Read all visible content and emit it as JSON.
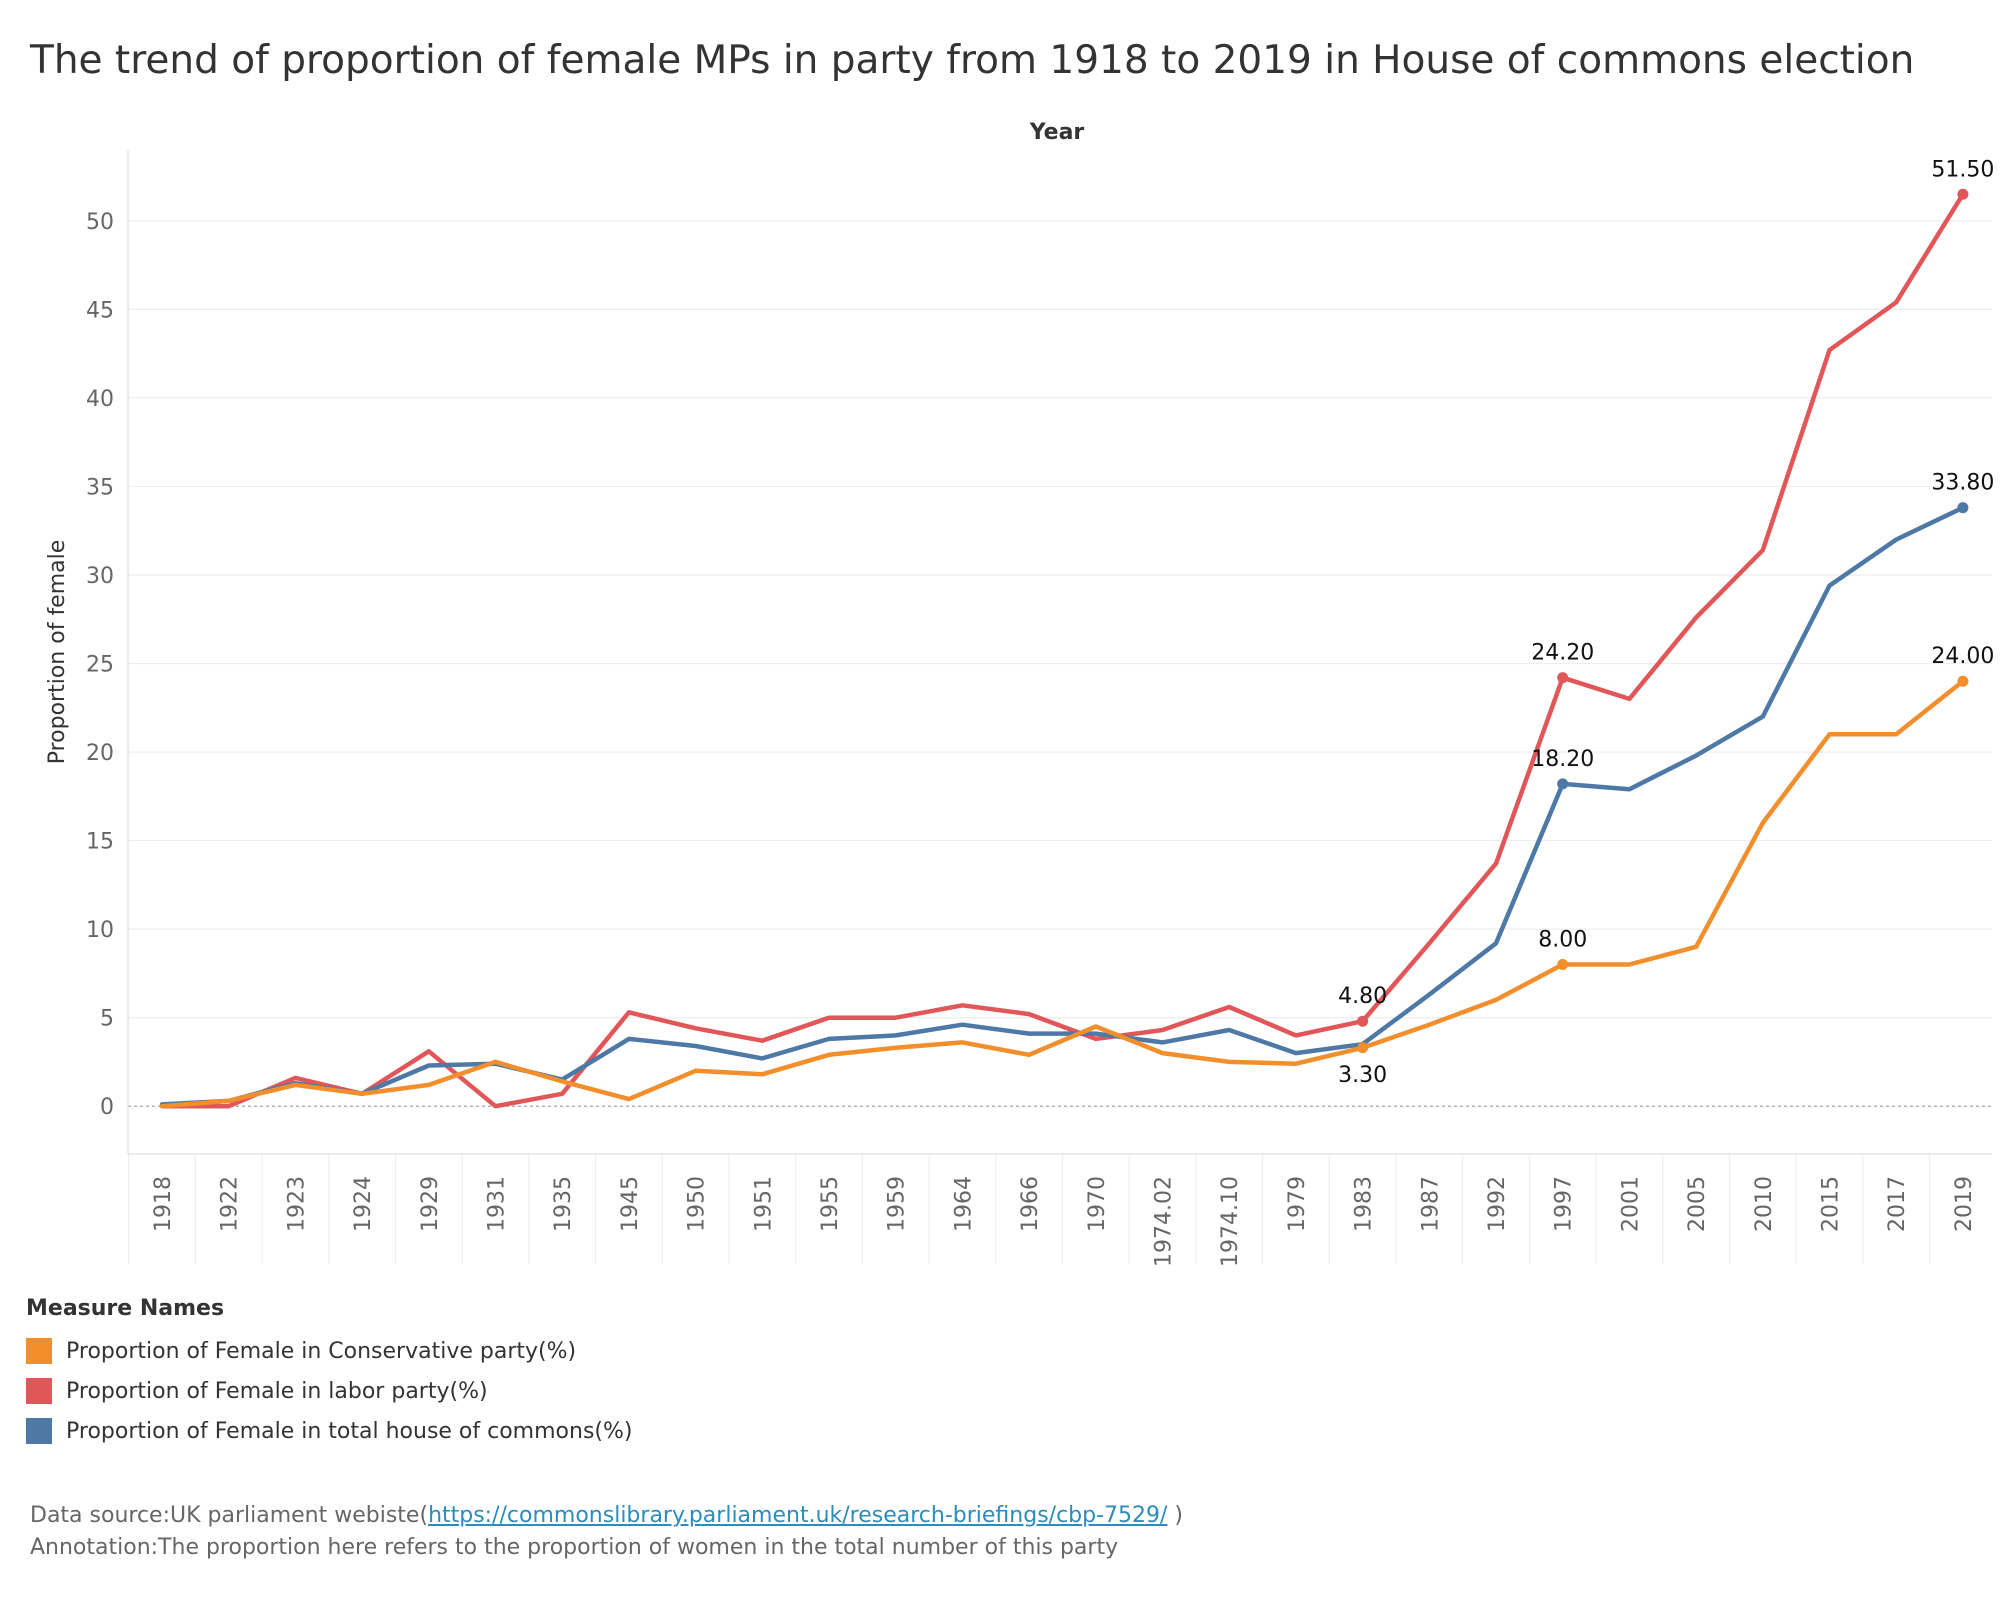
{
  "title": "The trend of proportion of female MPs in party from 1918 to 2019 in House of commons election",
  "legend": {
    "title": "Measure Names",
    "items": [
      {
        "label": "Proportion of Female in Conservative party(%)",
        "color": "#f28e2b"
      },
      {
        "label": "Proportion of Female in labor party(%)",
        "color": "#e15759"
      },
      {
        "label": "Proportion of Female in total house of commons(%)",
        "color": "#4e79a7"
      }
    ]
  },
  "footer": {
    "source_prefix": "Data source:UK parliament webiste(",
    "source_link": "https://commonslibrary.parliament.uk/research-briefings/cbp-7529/",
    "source_suffix": " )",
    "annotation": "Annotation:The proportion here refers to the proportion of women in the total number of this party"
  },
  "chart_data": {
    "type": "line",
    "title": "The trend of proportion of female MPs in party from 1918 to 2019 in House of commons election",
    "xlabel": "Year",
    "ylabel": "Proportion of female",
    "ylim": [
      -2.7,
      54
    ],
    "yticks": [
      0,
      5,
      10,
      15,
      20,
      25,
      30,
      35,
      40,
      45,
      50
    ],
    "grid": true,
    "legend_position": "bottom-left",
    "categories": [
      "1918",
      "1922",
      "1923",
      "1924",
      "1929",
      "1931",
      "1935",
      "1945",
      "1950",
      "1951",
      "1955",
      "1959",
      "1964",
      "1966",
      "1970",
      "1974.02",
      "1974.10",
      "1979",
      "1983",
      "1987",
      "1992",
      "1997",
      "2001",
      "2005",
      "2010",
      "2015",
      "2017",
      "2019"
    ],
    "series": [
      {
        "name": "Proportion of Female in labor party(%)",
        "color": "#e15759",
        "values": [
          0,
          0,
          1.6,
          0.7,
          3.1,
          0,
          0.7,
          5.3,
          4.4,
          3.7,
          5.0,
          5.0,
          5.7,
          5.2,
          3.8,
          4.3,
          5.6,
          4.0,
          4.8,
          9.2,
          13.7,
          24.2,
          23.0,
          27.6,
          31.4,
          42.7,
          45.4,
          51.5
        ],
        "labels": [
          {
            "index": 18,
            "text": "4.80"
          },
          {
            "index": 21,
            "text": "24.20"
          },
          {
            "index": 27,
            "text": "51.50"
          }
        ]
      },
      {
        "name": "Proportion of Female in total house of commons(%)",
        "color": "#4e79a7",
        "values": [
          0.1,
          0.3,
          1.3,
          0.7,
          2.3,
          2.4,
          1.5,
          3.8,
          3.4,
          2.7,
          3.8,
          4.0,
          4.6,
          4.1,
          4.1,
          3.6,
          4.3,
          3.0,
          3.5,
          6.3,
          9.2,
          18.2,
          17.9,
          19.8,
          22.0,
          29.4,
          32.0,
          33.8
        ],
        "labels": [
          {
            "index": 21,
            "text": "18.20"
          },
          {
            "index": 27,
            "text": "33.80"
          }
        ]
      },
      {
        "name": "Proportion of Female in Conservative party(%)",
        "color": "#f28e2b",
        "values": [
          0,
          0.3,
          1.2,
          0.7,
          1.2,
          2.5,
          1.4,
          0.4,
          2.0,
          1.8,
          2.9,
          3.3,
          3.6,
          2.9,
          4.5,
          3.0,
          2.5,
          2.4,
          3.3,
          4.6,
          6.0,
          8.0,
          8.0,
          9.0,
          16.0,
          21.0,
          21.0,
          24.0
        ],
        "labels": [
          {
            "index": 18,
            "text": "3.30"
          },
          {
            "index": 21,
            "text": "8.00"
          },
          {
            "index": 27,
            "text": "24.00"
          }
        ]
      }
    ]
  }
}
